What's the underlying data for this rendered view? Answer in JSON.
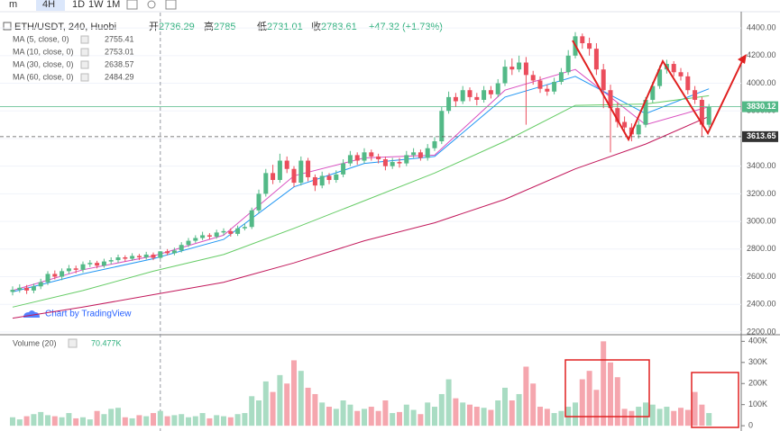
{
  "toolbar": {
    "interval_menu": "m",
    "intervals": [
      "4H",
      "1D",
      "1W",
      "1M"
    ]
  },
  "chart_data": [
    {
      "type": "candlestick",
      "title": "ETH/USDT, 240, Huobi",
      "ohlc_labels": [
        {
          "label": "开",
          "value": 2736.29
        },
        {
          "label": "高",
          "value": 2785.0
        },
        {
          "label": "低",
          "value": 2731.01
        },
        {
          "label": "收",
          "value": 2783.61
        }
      ],
      "change": "+47.32 (+1.73%)",
      "open": [
        2490,
        2505,
        2520,
        2500,
        2530,
        2560,
        2620,
        2600,
        2640,
        2660,
        2650,
        2690,
        2700,
        2680,
        2710,
        2720,
        2740,
        2730,
        2750,
        2740,
        2760,
        2736.29,
        2783.61,
        2770,
        2790,
        2830,
        2860,
        2880,
        2900,
        2890,
        2920,
        2930,
        2910,
        2950,
        2960,
        3080,
        3200,
        3350,
        3300,
        3440,
        3380,
        3280,
        3440,
        3320,
        3260,
        3330,
        3300,
        3340,
        3420,
        3480,
        3440,
        3500,
        3470,
        3450,
        3400,
        3430,
        3420,
        3480,
        3500,
        3460,
        3530,
        3580,
        3800,
        3900,
        3870,
        3950,
        3900,
        3880,
        3950,
        3920,
        4000,
        4120,
        4100,
        4150,
        4060,
        4020,
        3960,
        3940,
        4010,
        4080,
        4200,
        4340,
        4290,
        4250,
        4100,
        3950,
        3820,
        3720,
        3680,
        3630,
        3700,
        3880,
        3980,
        4100,
        4140,
        4080,
        4050,
        3950,
        3880,
        3700
      ],
      "high": [
        2530,
        2545,
        2540,
        2550,
        2585,
        2640,
        2645,
        2660,
        2685,
        2680,
        2710,
        2720,
        2715,
        2730,
        2740,
        2760,
        2755,
        2770,
        2765,
        2780,
        2775,
        2785,
        2800,
        2810,
        2850,
        2880,
        2900,
        2925,
        2915,
        2940,
        2950,
        2950,
        2970,
        2985,
        3100,
        3230,
        3380,
        3410,
        3490,
        3470,
        3400,
        3470,
        3460,
        3340,
        3360,
        3350,
        3370,
        3450,
        3510,
        3500,
        3530,
        3520,
        3490,
        3470,
        3460,
        3460,
        3510,
        3530,
        3520,
        3560,
        3610,
        3830,
        3940,
        3930,
        3980,
        3970,
        3930,
        3980,
        3980,
        4030,
        4170,
        4180,
        4200,
        4190,
        4090,
        4050,
        3990,
        4040,
        4110,
        4240,
        4370,
        4360,
        4330,
        4290,
        4140,
        3990,
        3860,
        3760,
        3710,
        3730,
        3900,
        4010,
        4130,
        4170,
        4160,
        4110,
        4080,
        3980,
        3900,
        3850
      ],
      "low": [
        2465,
        2485,
        2475,
        2480,
        2510,
        2540,
        2580,
        2575,
        2620,
        2625,
        2630,
        2670,
        2660,
        2665,
        2690,
        2700,
        2710,
        2715,
        2720,
        2725,
        2720,
        2731.01,
        2755,
        2755,
        2775,
        2815,
        2845,
        2865,
        2870,
        2875,
        2900,
        2890,
        2895,
        2935,
        2945,
        3060,
        3180,
        3270,
        3280,
        3350,
        3250,
        3260,
        3290,
        3220,
        3240,
        3270,
        3280,
        3320,
        3400,
        3410,
        3420,
        3440,
        3420,
        3370,
        3380,
        3390,
        3400,
        3460,
        3440,
        3440,
        3510,
        3560,
        3780,
        3830,
        3850,
        3870,
        3840,
        3860,
        3890,
        3900,
        3980,
        4060,
        4080,
        3700,
        3990,
        3930,
        3910,
        3920,
        3990,
        4060,
        4180,
        4250,
        4200,
        4060,
        3820,
        3500,
        3680,
        3640,
        3580,
        3600,
        3680,
        3860,
        3960,
        4070,
        4050,
        4020,
        3920,
        3850,
        3613.65,
        3680
      ],
      "close": [
        2505,
        2520,
        2500,
        2530,
        2560,
        2620,
        2600,
        2640,
        2660,
        2650,
        2690,
        2700,
        2680,
        2710,
        2720,
        2740,
        2730,
        2750,
        2740,
        2760,
        2736.29,
        2783.61,
        2770,
        2790,
        2830,
        2860,
        2880,
        2900,
        2890,
        2920,
        2930,
        2910,
        2950,
        2960,
        3080,
        3200,
        3350,
        3300,
        3440,
        3380,
        3280,
        3440,
        3320,
        3260,
        3330,
        3300,
        3340,
        3420,
        3480,
        3440,
        3500,
        3470,
        3450,
        3400,
        3430,
        3420,
        3480,
        3500,
        3460,
        3530,
        3580,
        3800,
        3900,
        3870,
        3950,
        3900,
        3880,
        3950,
        3920,
        4000,
        4120,
        4100,
        4150,
        4060,
        4020,
        3960,
        3940,
        4010,
        4080,
        4200,
        4340,
        4290,
        4250,
        4100,
        3950,
        3820,
        3720,
        3680,
        3630,
        3700,
        3880,
        3980,
        4100,
        4140,
        4080,
        4050,
        3950,
        3880,
        3700,
        3830.12
      ],
      "up_color": "#53b987",
      "down_color": "#eb4d5c",
      "indicators": [
        {
          "name": "MA (5, close, 0)",
          "value": 2755.41,
          "color": "#d94fc0",
          "x": [
            0,
            10,
            20,
            30,
            40,
            50,
            60,
            70,
            80,
            90,
            99
          ],
          "values": [
            2500,
            2650,
            2750,
            2900,
            3330,
            3460,
            3480,
            3950,
            4100,
            3700,
            3830
          ]
        },
        {
          "name": "MA (10, close, 0)",
          "value": 2753.01,
          "color": "#2196f3",
          "x": [
            0,
            10,
            20,
            30,
            40,
            50,
            60,
            70,
            80,
            90,
            99
          ],
          "values": [
            2490,
            2620,
            2730,
            2870,
            3250,
            3420,
            3470,
            3900,
            4050,
            3780,
            3960
          ]
        },
        {
          "name": "MA (30, close, 0)",
          "value": 2638.57,
          "color": "#66cc66",
          "x": [
            0,
            10,
            20,
            30,
            40,
            50,
            60,
            70,
            80,
            90,
            99
          ],
          "values": [
            2380,
            2500,
            2640,
            2760,
            2950,
            3150,
            3350,
            3580,
            3840,
            3850,
            3910
          ]
        },
        {
          "name": "MA (60, close, 0)",
          "value": 2484.29,
          "color": "#c2185b",
          "x": [
            0,
            10,
            20,
            30,
            40,
            50,
            60,
            70,
            80,
            90,
            99
          ],
          "values": [
            2300,
            2380,
            2470,
            2560,
            2700,
            2860,
            2990,
            3160,
            3380,
            3560,
            3760
          ]
        }
      ],
      "price_lines": [
        3830.12,
        3613.65
      ],
      "ylim": [
        2180,
        4505
      ],
      "yticks": [
        {
          "value": 2200,
          "label": "2200.00"
        },
        {
          "value": 2400,
          "label": "2400.00"
        },
        {
          "value": 2600,
          "label": "2600.00"
        },
        {
          "value": 2800,
          "label": "2800.00"
        },
        {
          "value": 3000,
          "label": "3000.00"
        },
        {
          "value": 3200,
          "label": "3200.00"
        },
        {
          "value": 3400,
          "label": "3400.00"
        },
        {
          "value": 3600,
          "label": "3600.00"
        },
        {
          "value": 3800,
          "label": "3800.00"
        },
        {
          "value": 4000,
          "label": "4000.00"
        },
        {
          "value": 4200,
          "label": "4200.00"
        },
        {
          "value": 4400,
          "label": "4400.00"
        }
      ],
      "grid": true,
      "watermark": "Chart by TradingView"
    },
    {
      "type": "bar",
      "title": "Volume (20)",
      "last_value_label": "70.477K",
      "values": [
        40000,
        30000,
        45000,
        55000,
        65000,
        50000,
        45000,
        40000,
        60000,
        35000,
        40000,
        30000,
        70000,
        55000,
        80000,
        85000,
        40000,
        35000,
        50000,
        45000,
        60000,
        70000,
        45000,
        50000,
        55000,
        40000,
        45000,
        60000,
        35000,
        50000,
        45000,
        40000,
        55000,
        60000,
        140000,
        120000,
        210000,
        160000,
        240000,
        200000,
        310000,
        260000,
        180000,
        150000,
        110000,
        90000,
        80000,
        120000,
        100000,
        70000,
        80000,
        90000,
        70000,
        120000,
        60000,
        65000,
        100000,
        75000,
        55000,
        110000,
        90000,
        150000,
        220000,
        130000,
        110000,
        100000,
        90000,
        85000,
        75000,
        120000,
        180000,
        120000,
        150000,
        280000,
        200000,
        90000,
        80000,
        60000,
        70000,
        90000,
        110000,
        220000,
        260000,
        170000,
        400000,
        300000,
        230000,
        80000,
        70000,
        90000,
        110000,
        100000,
        80000,
        90000,
        70000,
        85000,
        75000,
        160000,
        100000,
        60000
      ],
      "up_color": "#a9dcc3",
      "down_color": "#f5a6ae",
      "ylim": [
        -25000,
        410000
      ],
      "yticks": [
        0,
        {
          "value": 100000,
          "label": "100K"
        },
        {
          "value": 200000,
          "label": "200K"
        },
        {
          "value": 300000,
          "label": "300K"
        },
        {
          "value": 400000,
          "label": "400K"
        }
      ]
    }
  ]
}
